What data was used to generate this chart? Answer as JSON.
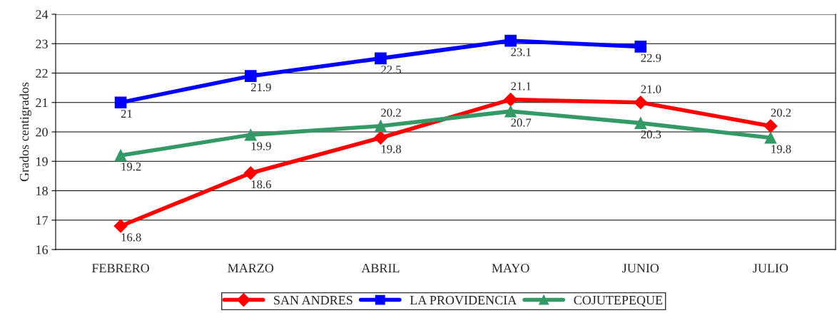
{
  "chart_data": {
    "type": "line",
    "ylabel": "Grados centigrados",
    "categories": [
      "FEBRERO",
      "MARZO",
      "ABRIL",
      "MAYO",
      "JUNIO",
      "JULIO"
    ],
    "series": [
      {
        "name": "SAN ANDRES",
        "color": "#ff0000",
        "marker": "diamond",
        "values": [
          16.8,
          18.6,
          19.8,
          21.1,
          21.0,
          20.2
        ],
        "value_labels": [
          "16.8",
          "18.6",
          "19.8",
          "21.1",
          "21.0",
          "20.2"
        ]
      },
      {
        "name": "LA PROVIDENCIA",
        "color": "#0000ff",
        "marker": "square",
        "values": [
          21,
          21.9,
          22.5,
          23.1,
          22.9,
          null
        ],
        "value_labels": [
          "21",
          "21.9",
          "22.5",
          "23.1",
          "22.9",
          null
        ]
      },
      {
        "name": "COJUTEPEQUE",
        "color": "#339966",
        "marker": "triangle",
        "values": [
          19.2,
          19.9,
          20.2,
          20.7,
          20.3,
          19.8
        ],
        "value_labels": [
          "19.2",
          "19.9",
          "20.2",
          "20.7",
          "20.3",
          "19.8"
        ]
      }
    ],
    "ylim": [
      16,
      24
    ],
    "yticks": [
      16,
      17,
      18,
      19,
      20,
      21,
      22,
      23,
      24
    ],
    "grid": "y",
    "legend": "bottom",
    "line_style": "solid"
  }
}
